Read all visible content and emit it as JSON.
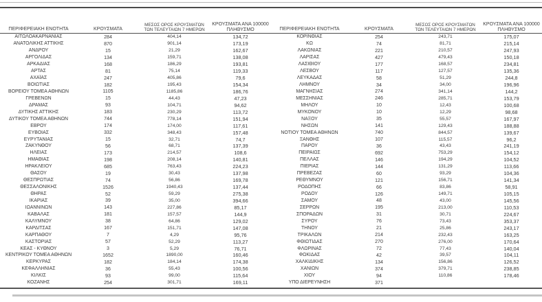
{
  "colors": {
    "background": "#ffffff",
    "text": "#3a3a3a",
    "rule_dark": "#4a4a4a",
    "rule_light": "#b7b7b7"
  },
  "table": {
    "headers": {
      "region": "ΠΕΡΙΦΕΡΕΙΑΚΗ ΕΝΟΤΗΤΑ",
      "cases": "ΚΡΟΥΣΜΑΤΑ",
      "avg7_line1": "ΜΕΣΟΣ ΟΡΟΣ ΚΡΟΥΣΜΑΤΩΝ",
      "avg7_line2": "ΤΩΝ ΤΕΛΕΥΤΑΙΩΝ 7 ΗΜΕΡΩΝ",
      "per100k_line1": "ΚΡΟΥΣΜΑΤΑ ΑΝΑ 100000",
      "per100k_line2": "ΠΛΗΘΥΣΜΟ"
    },
    "left_rows": [
      [
        "ΑΙΤΩΛΟΑΚΑΡΝΑΝΙΑΣ",
        "284",
        "404,14",
        "134,72"
      ],
      [
        "ΑΝΑΤΟΛΙΚΗΣ ΑΤΤΙΚΗΣ",
        "870",
        "901,14",
        "173,19"
      ],
      [
        "ΑΝΔΡΟΥ",
        "15",
        "21,29",
        "162,67"
      ],
      [
        "ΑΡΓΟΛΙΔΑΣ",
        "134",
        "159,71",
        "138,08"
      ],
      [
        "ΑΡΚΑΔΙΑΣ",
        "168",
        "186,29",
        "193,81"
      ],
      [
        "ΑΡΤΑΣ",
        "81",
        "75,14",
        "119,33"
      ],
      [
        "ΑΧΑΪΑΣ",
        "247",
        "405,86",
        "79,6"
      ],
      [
        "ΒΟΙΩΤΙΑΣ",
        "182",
        "195,43",
        "154,34"
      ],
      [
        "ΒΟΡΕΙΟΥ ΤΟΜΕΑ ΑΘΗΝΩΝ",
        "1105",
        "1185,86",
        "186,76"
      ],
      [
        "ΓΡΕΒΕΝΩΝ",
        "15",
        "44,43",
        "47,23"
      ],
      [
        "ΔΡΑΜΑΣ",
        "93",
        "104,71",
        "94,62"
      ],
      [
        "ΔΥΤΙΚΗΣ ΑΤΤΙΚΗΣ",
        "183",
        "230,29",
        "113,72"
      ],
      [
        "ΔΥΤΙΚΟΥ ΤΟΜΕΑ ΑΘΗΝΩΝ",
        "744",
        "778,14",
        "151,94"
      ],
      [
        "ΕΒΡΟΥ",
        "174",
        "174,00",
        "117,61"
      ],
      [
        "ΕΥΒΟΙΑΣ",
        "332",
        "348,43",
        "157,48"
      ],
      [
        "ΕΥΡΥΤΑΝΙΑΣ",
        "15",
        "32,71",
        "74,7"
      ],
      [
        "ΖΑΚΥΝΘΟΥ",
        "56",
        "68,71",
        "137,39"
      ],
      [
        "ΗΛΕΙΑΣ",
        "173",
        "214,57",
        "108,6"
      ],
      [
        "ΗΜΑΘΙΑΣ",
        "198",
        "208,14",
        "140,81"
      ],
      [
        "ΗΡΑΚΛΕΙΟΥ",
        "685",
        "763,43",
        "224,23"
      ],
      [
        "ΘΑΣΟΥ",
        "19",
        "30,43",
        "137,98"
      ],
      [
        "ΘΕΣΠΡΩΤΙΑΣ",
        "74",
        "56,86",
        "169,78"
      ],
      [
        "ΘΕΣΣΑΛΟΝΙΚΗΣ",
        "1526",
        "1940,43",
        "137,44"
      ],
      [
        "ΘΗΡΑΣ",
        "52",
        "59,29",
        "275,38"
      ],
      [
        "ΙΚΑΡΙΑΣ",
        "39",
        "35,00",
        "394,66"
      ],
      [
        "ΙΩΑΝΝΙΝΩΝ",
        "143",
        "227,86",
        "85,17"
      ],
      [
        "ΚΑΒΑΛΑΣ",
        "181",
        "157,57",
        "144,9"
      ],
      [
        "ΚΑΛΥΜΝΟΥ",
        "38",
        "64,86",
        "129,02"
      ],
      [
        "ΚΑΡΔΙΤΣΑΣ",
        "167",
        "151,71",
        "147,08"
      ],
      [
        "ΚΑΡΠΑΘΟΥ",
        "7",
        "4,29",
        "95,76"
      ],
      [
        "ΚΑΣΤΟΡΙΑΣ",
        "57",
        "52,29",
        "113,27"
      ],
      [
        "ΚΕΑΣ - ΚΥΘΝΟΥ",
        "3",
        "5,29",
        "76,71"
      ],
      [
        "ΚΕΝΤΡΙΚΟΥ ΤΟΜΕΑ ΑΘΗΝΩΝ",
        "1652",
        "1890,00",
        "160,46"
      ],
      [
        "ΚΕΡΚΥΡΑΣ",
        "182",
        "184,14",
        "174,38"
      ],
      [
        "ΚΕΦΑΛΛΗΝΙΑΣ",
        "36",
        "55,43",
        "100,56"
      ],
      [
        "ΚΙΛΚΙΣ",
        "93",
        "99,00",
        "115,64"
      ],
      [
        "ΚΟΖΑΝΗΣ",
        "254",
        "301,71",
        "169,11"
      ]
    ],
    "right_rows": [
      [
        "ΚΟΡΙΝΘΙΑΣ",
        "254",
        "243,71",
        "175,07"
      ],
      [
        "ΚΩ",
        "74",
        "81,71",
        "215,14"
      ],
      [
        "ΛΑΚΩΝΙΑΣ",
        "221",
        "210,57",
        "247,93"
      ],
      [
        "ΛΑΡΙΣΑΣ",
        "427",
        "479,43",
        "150,18"
      ],
      [
        "ΛΑΣΙΘΙΟΥ",
        "177",
        "168,57",
        "234,81"
      ],
      [
        "ΛΕΣΒΟΥ",
        "117",
        "127,57",
        "135,36"
      ],
      [
        "ΛΕΥΚΑΔΑΣ",
        "58",
        "51,29",
        "244,8"
      ],
      [
        "ΛΗΜΝΟΥ",
        "34",
        "34,00",
        "196,96"
      ],
      [
        "ΜΑΓΝΗΣΙΑΣ",
        "274",
        "341,14",
        "144,2"
      ],
      [
        "ΜΕΣΣΗΝΙΑΣ",
        "246",
        "285,71",
        "153,79"
      ],
      [
        "ΜΗΛΟΥ",
        "10",
        "12,43",
        "100,68"
      ],
      [
        "ΜΥΚΟΝΟΥ",
        "10",
        "12,29",
        "98,68"
      ],
      [
        "ΝΑΞΟΥ",
        "35",
        "55,57",
        "167,97"
      ],
      [
        "ΝΗΣΩΝ",
        "141",
        "129,43",
        "188,88"
      ],
      [
        "ΝΟΤΙΟΥ ΤΟΜΕΑ ΑΘΗΝΩΝ",
        "740",
        "844,57",
        "139,67"
      ],
      [
        "ΞΑΝΘΗΣ",
        "107",
        "115,57",
        "96,2"
      ],
      [
        "ΠΑΡΟΥ",
        "36",
        "43,43",
        "241,19"
      ],
      [
        "ΠΕΙΡΑΙΩΣ",
        "692",
        "753,29",
        "154,12"
      ],
      [
        "ΠΕΛΛΑΣ",
        "146",
        "194,29",
        "104,52"
      ],
      [
        "ΠΙΕΡΙΑΣ",
        "144",
        "131,29",
        "113,66"
      ],
      [
        "ΠΡΕΒΕΖΑΣ",
        "60",
        "93,29",
        "104,36"
      ],
      [
        "ΡΕΘΥΜΝΟΥ",
        "121",
        "156,71",
        "141,34"
      ],
      [
        "ΡΟΔΟΠΗΣ",
        "66",
        "83,86",
        "58,91"
      ],
      [
        "ΡΟΔΟΥ",
        "126",
        "149,71",
        "105,15"
      ],
      [
        "ΣΑΜΟΥ",
        "48",
        "43,00",
        "145,56"
      ],
      [
        "ΣΕΡΡΩΝ",
        "195",
        "213,00",
        "110,53"
      ],
      [
        "ΣΠΟΡΑΔΩΝ",
        "31",
        "30,71",
        "224,67"
      ],
      [
        "ΣΥΡΟΥ",
        "76",
        "73,43",
        "353,37"
      ],
      [
        "ΤΗΝΟΥ",
        "21",
        "25,86",
        "243,17"
      ],
      [
        "ΤΡΙΚΑΛΩΝ",
        "214",
        "232,43",
        "163,25"
      ],
      [
        "ΦΘΙΩΤΙΔΑΣ",
        "270",
        "276,00",
        "170,64"
      ],
      [
        "ΦΛΩΡΙΝΑΣ",
        "72",
        "77,43",
        "140,04"
      ],
      [
        "ΦΩΚΙΔΑΣ",
        "42",
        "39,57",
        "104,11"
      ],
      [
        "ΧΑΛΚΙΔΙΚΗΣ",
        "134",
        "156,86",
        "126,52"
      ],
      [
        "ΧΑΝΙΩΝ",
        "374",
        "379,71",
        "238,85"
      ],
      [
        "ΧΙΟΥ",
        "94",
        "110,86",
        "178,46"
      ],
      [
        "ΥΠΟ ΔΙΕΡΕΥΝΗΣΗ",
        "371",
        "",
        ""
      ]
    ]
  }
}
